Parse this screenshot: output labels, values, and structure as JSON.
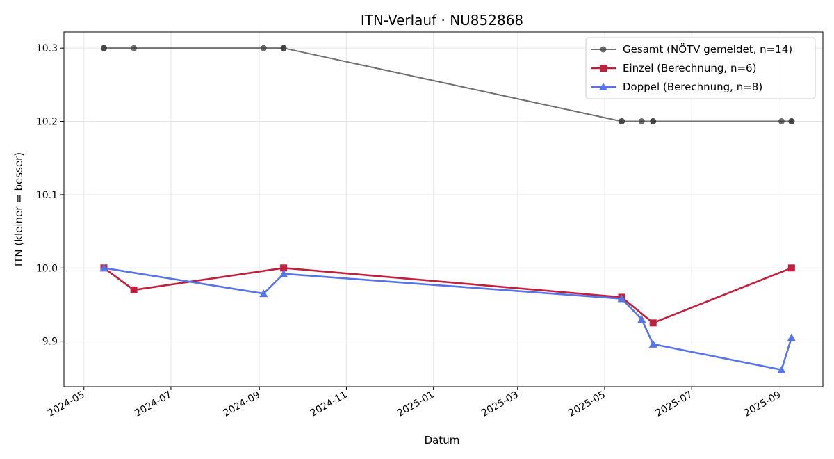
{
  "chart_data": {
    "type": "line",
    "title": "ITN-Verlauf · NU852868",
    "xlabel": "Datum",
    "ylabel": "ITN  (kleiner = besser)",
    "x_ticks": [
      "2024-05",
      "2024-07",
      "2024-09",
      "2024-11",
      "2025-01",
      "2025-03",
      "2025-05",
      "2025-07",
      "2025-09"
    ],
    "y_ticks": [
      "9.9",
      "10.0",
      "10.1",
      "10.2",
      "10.3"
    ],
    "xlim": [
      "2024-04-17",
      "2025-10-01"
    ],
    "ylim": [
      9.838,
      10.322
    ],
    "grid": true,
    "legend_position": "top-right",
    "series": [
      {
        "name": "Gesamt (NÖTV gemeldet, n=14)",
        "color": "#707070",
        "marker": "circle",
        "points": [
          {
            "x": "2024-05-15",
            "y": 10.3
          },
          {
            "x": "2024-05-15",
            "y": 10.3
          },
          {
            "x": "2024-06-05",
            "y": 10.3
          },
          {
            "x": "2024-09-04",
            "y": 10.3
          },
          {
            "x": "2024-09-18",
            "y": 10.3
          },
          {
            "x": "2024-09-18",
            "y": 10.3
          },
          {
            "x": "2025-05-13",
            "y": 10.2
          },
          {
            "x": "2025-05-13",
            "y": 10.2
          },
          {
            "x": "2025-05-27",
            "y": 10.2
          },
          {
            "x": "2025-06-04",
            "y": 10.2
          },
          {
            "x": "2025-06-04",
            "y": 10.2
          },
          {
            "x": "2025-09-02",
            "y": 10.2
          },
          {
            "x": "2025-09-09",
            "y": 10.2
          },
          {
            "x": "2025-09-09",
            "y": 10.2
          }
        ]
      },
      {
        "name": "Einzel (Berechnung, n=6)",
        "color": "#c0203e",
        "marker": "square",
        "points": [
          {
            "x": "2024-05-15",
            "y": 10.0
          },
          {
            "x": "2024-06-05",
            "y": 9.97
          },
          {
            "x": "2024-09-18",
            "y": 10.0
          },
          {
            "x": "2025-05-13",
            "y": 9.96
          },
          {
            "x": "2025-06-04",
            "y": 9.925
          },
          {
            "x": "2025-09-09",
            "y": 10.0
          }
        ]
      },
      {
        "name": "Doppel (Berechnung, n=8)",
        "color": "#5674e8",
        "marker": "triangle",
        "points": [
          {
            "x": "2024-05-15",
            "y": 10.0
          },
          {
            "x": "2024-09-04",
            "y": 9.965
          },
          {
            "x": "2024-09-18",
            "y": 9.992
          },
          {
            "x": "2025-05-13",
            "y": 9.958
          },
          {
            "x": "2025-05-27",
            "y": 9.93
          },
          {
            "x": "2025-06-04",
            "y": 9.896
          },
          {
            "x": "2025-09-02",
            "y": 9.861
          },
          {
            "x": "2025-09-09",
            "y": 9.905
          }
        ]
      }
    ]
  }
}
